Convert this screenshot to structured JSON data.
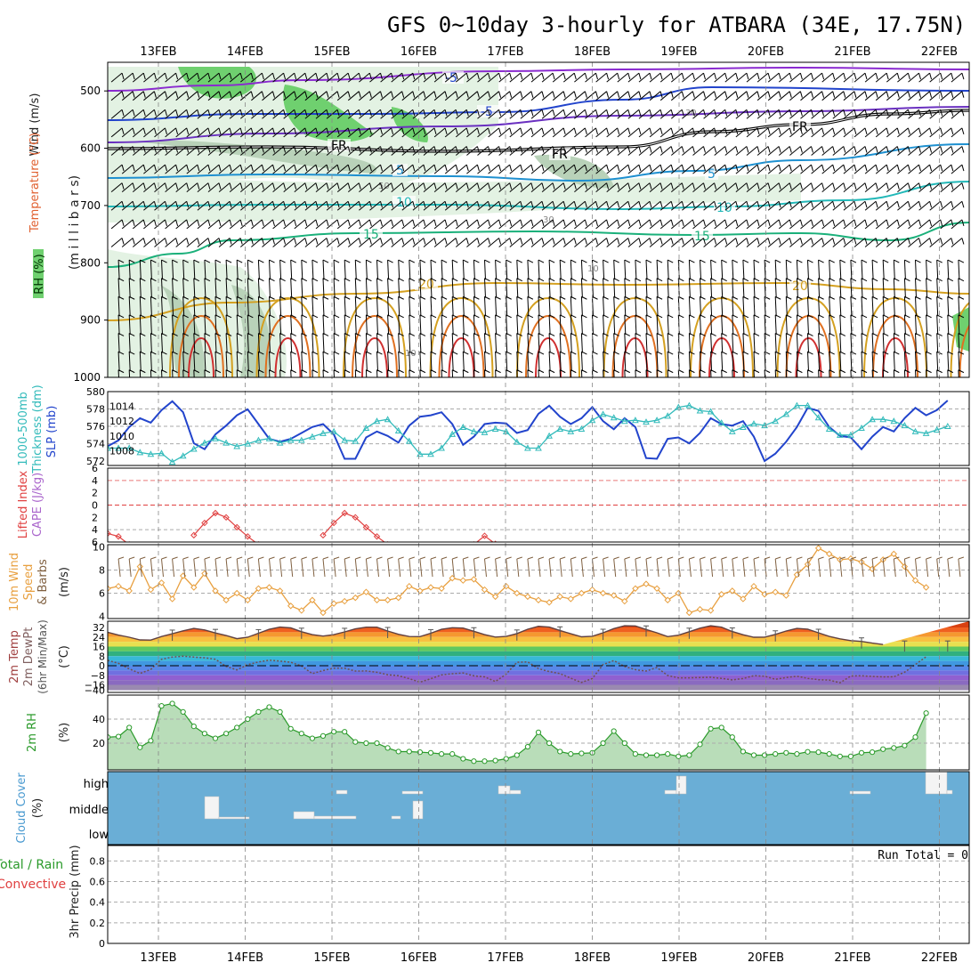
{
  "title": "GFS 0~10day 3-hourly for ATBARA (34E, 17.75N)",
  "date_labels": [
    "13FEB",
    "14FEB",
    "15FEB",
    "16FEB",
    "17FEB",
    "18FEB",
    "19FEB",
    "20FEB",
    "21FEB",
    "22FEB"
  ],
  "colors": {
    "rh_light": "#e3f2e3",
    "rh_mid": "#b9d2b9",
    "rh_green": "#6fd06f",
    "cloud_blue": "#6aaed6",
    "grid": "#aaaaaa",
    "cyan": "#33bbbb",
    "slp_blue": "#2244cc",
    "li_red": "#e04040",
    "wind_orange": "#e8a040",
    "rh_line": "#2a9a2a"
  },
  "chart_data": [
    {
      "type": "contour",
      "name": "upper-air",
      "legend": {
        "wind": "Wind (m/s)",
        "temperature": "Temperature (°C)",
        "rh": "RH (%)"
      },
      "ylabel": "(m i l l i b a r s)",
      "y_ticks": [
        500,
        600,
        700,
        800,
        900,
        1000
      ],
      "ylim": [
        450,
        1000
      ],
      "temperature_contours": [
        {
          "label": "-5",
          "level_mb": 545,
          "color": "#2244cc"
        },
        {
          "label": "FR",
          "level_mb": 600,
          "color": "#000000"
        },
        {
          "label": "5",
          "level_mb": 660,
          "color": "#1e90d0"
        },
        {
          "label": "10",
          "level_mb": 700,
          "color": "#22b8b8"
        },
        {
          "label": "15",
          "level_mb": 760,
          "color": "#1ab07a"
        },
        {
          "label": "20",
          "level_mb": 830,
          "color": "#d4a020"
        }
      ],
      "rh_labels": [
        "30",
        "50",
        "30",
        "10",
        "10"
      ]
    },
    {
      "type": "line",
      "name": "thickness-slp",
      "ylabel_left": "1000-500mb Thickness (dm)",
      "ylabel_right": "SLP (mb)",
      "y_ticks_thickness": [
        572,
        574,
        576,
        578,
        580
      ],
      "y_ticks_slp": [
        1008,
        1010,
        1012,
        1014
      ],
      "series": [
        {
          "name": "SLP",
          "values": [
            1008.6,
            1009.4,
            1011.2,
            1012.4,
            1011.8,
            1013.5,
            1014.7,
            1013.2,
            1009.0,
            1008.2,
            1010.2,
            1011.4,
            1012.8,
            1013.6,
            1011.6,
            1009.6,
            1009.2,
            1009.6,
            1010.4,
            1011.2,
            1011.6,
            1010.2,
            1006.9,
            1006.9,
            1009.8,
            1010.6,
            1010.0,
            1009.1,
            1011.4,
            1012.6,
            1012.8,
            1013.2,
            1011.6,
            1008.8,
            1009.9,
            1011.6,
            1011.8,
            1011.7,
            1010.4,
            1010.8,
            1013.0,
            1014.1,
            1012.6,
            1011.6,
            1012.4,
            1013.9,
            1012.0,
            1010.9,
            1012.4,
            1011.2,
            1007.0,
            1006.9,
            1009.6,
            1009.8,
            1009.0,
            1010.4,
            1012.4,
            1011.6,
            1011.4,
            1012.0,
            1009.9,
            1006.6,
            1007.6,
            1009.2,
            1011.2,
            1013.8,
            1013.4,
            1011.2,
            1010.0,
            1009.8,
            1008.2,
            1009.9,
            1011.2,
            1010.6,
            1012.4,
            1013.8,
            1012.8,
            1013.5,
            1014.8
          ]
        },
        {
          "name": "Thickness",
          "values": [
            573.5,
            573.5,
            573.5,
            573.0,
            572.8,
            572.9,
            571.9,
            572.6,
            573.4,
            574.1,
            574.6,
            574.1,
            573.7,
            574.0,
            574.4,
            574.6,
            574.1,
            574.4,
            574.4,
            574.8,
            575.2,
            575.4,
            574.4,
            574.3,
            575.8,
            576.6,
            576.8,
            575.5,
            574.3,
            572.8,
            572.8,
            573.5,
            575.1,
            575.9,
            575.4,
            575.3,
            575.7,
            575.4,
            574.2,
            573.5,
            573.5,
            574.9,
            575.7,
            575.4,
            575.7,
            576.7,
            577.4,
            577.0,
            576.6,
            576.7,
            576.5,
            576.7,
            577.2,
            578.2,
            578.4,
            577.8,
            577.7,
            576.4,
            575.4,
            575.9,
            576.3,
            576.1,
            576.6,
            577.4,
            578.4,
            578.4,
            577.0,
            575.7,
            575.0,
            575.0,
            575.8,
            576.8,
            576.8,
            576.6,
            576.1,
            575.4,
            575.2,
            575.6,
            576.0
          ]
        }
      ]
    },
    {
      "type": "line",
      "name": "lifted-index-cape",
      "ylabel_left": "Lifted Index",
      "ylabel_right": "CAPE (J/kg)",
      "y_ticks": [
        "6",
        "4",
        "2",
        "0",
        "2",
        "4",
        "6"
      ],
      "series": [
        {
          "name": "Lifted Index",
          "values": [
            4.6,
            5.1,
            6.4,
            null,
            null,
            null,
            null,
            null,
            4.9,
            2.9,
            1.3,
            2.0,
            3.6,
            5.1,
            6.4,
            null,
            null,
            null,
            null,
            null,
            4.9,
            2.9,
            1.3,
            2.0,
            3.6,
            5.1,
            6.4,
            null,
            null,
            null,
            null,
            null,
            null,
            null,
            6.4,
            5.0,
            6.3
          ]
        }
      ]
    },
    {
      "type": "line",
      "name": "wind-10m",
      "ylabel": "10m Wind Speed (m/s) & Barbs",
      "y_ticks": [
        4,
        6,
        8,
        10
      ],
      "series": [
        {
          "name": "Speed",
          "values": [
            6.4,
            6.6,
            6.2,
            8.3,
            6.3,
            6.9,
            5.5,
            7.5,
            6.5,
            7.7,
            6.2,
            5.4,
            6.0,
            5.4,
            6.4,
            6.5,
            6.2,
            4.9,
            4.5,
            5.4,
            4.3,
            5.1,
            5.3,
            5.6,
            6.1,
            5.4,
            5.4,
            5.6,
            6.6,
            6.2,
            6.5,
            6.4,
            7.3,
            7.1,
            7.2,
            6.3,
            5.7,
            6.6,
            6.0,
            5.7,
            5.4,
            5.2,
            5.7,
            5.5,
            6.0,
            6.3,
            6.0,
            5.8,
            5.3,
            6.4,
            6.8,
            6.4,
            5.4,
            6.0,
            4.3,
            4.6,
            4.5,
            5.9,
            6.2,
            5.5,
            6.6,
            5.9,
            6.1,
            5.8,
            7.6,
            8.5,
            9.9,
            9.4,
            8.9,
            9.0,
            8.7,
            8.1,
            8.9,
            9.4,
            8.3,
            7.1,
            6.5
          ]
        }
      ]
    },
    {
      "type": "area",
      "name": "temperature-2m",
      "ylabel": "2m Temp 2m DewPt (6hr Min/Max) (°C)",
      "y_ticks": [
        32,
        24,
        16,
        8,
        0,
        -8,
        -16,
        -40
      ],
      "y_tick_labels": [
        "32",
        "24",
        "16",
        "8",
        "0",
        "−8",
        "−16",
        "−40"
      ],
      "series": [
        {
          "name": "2m Temp",
          "values": [
            28.0,
            25.6,
            23.8,
            21.6,
            21.4,
            24.4,
            26.8,
            29.2,
            31.2,
            29.9,
            27.4,
            25.2,
            22.6,
            23.8,
            27.2,
            30.4,
            32.3,
            31.6,
            28.4,
            26.0,
            24.8,
            26.0,
            28.3,
            30.8,
            32.2,
            32.2,
            29.0,
            26.3,
            24.4,
            24.3,
            27.2,
            30.4,
            31.8,
            31.5,
            28.8,
            26.0,
            24.0,
            24.5,
            26.9,
            30.5,
            33.0,
            32.3,
            29.5,
            26.7,
            24.2,
            24.6,
            27.5,
            31.0,
            33.4,
            33.3,
            30.3,
            27.5,
            24.3,
            25.5,
            28.4,
            31.4,
            33.4,
            32.2,
            28.6,
            25.9,
            23.8,
            23.9,
            26.2,
            29.0,
            31.2,
            30.6,
            27.5,
            24.5,
            22.5,
            21.0,
            20.3,
            18.9,
            17.7
          ]
        },
        {
          "name": "2m DewPt",
          "values": [
            4.5,
            2.0,
            -2.6,
            -6.5,
            -3.1,
            5.4,
            7.2,
            8.0,
            7.2,
            6.6,
            5.4,
            -0.6,
            -3.5,
            0.9,
            3.1,
            4.6,
            3.9,
            2.9,
            -0.2,
            -6.6,
            -4.0,
            -2.1,
            -2.1,
            -4.5,
            -4.4,
            -5.5,
            -7.5,
            -8.4,
            -10.8,
            -13.8,
            -10.9,
            -7.7,
            -6.7,
            -6.0,
            -8.5,
            -9.3,
            -13.2,
            -7.1,
            2.9,
            3.2,
            -2.4,
            -4.9,
            -6.6,
            -10.4,
            -14.0,
            -10.7,
            1.0,
            4.3,
            -0.7,
            -3.3,
            -4.5,
            -1.5,
            -8.2,
            -10.1,
            -10.1,
            -9.9,
            -9.7,
            -10.6,
            -11.8,
            -10.7,
            -8.3,
            -8.8,
            -11.3,
            -9.9,
            -8.8,
            -10.6,
            -11.7,
            -12.0,
            -14.3,
            -8.6,
            -8.4,
            -8.9,
            -9.4,
            -9.2,
            -5.4,
            1.0,
            7.5
          ]
        }
      ]
    },
    {
      "type": "area",
      "name": "rh-2m",
      "ylabel": "2m RH (%)",
      "y_ticks": [
        20,
        40
      ],
      "series": [
        {
          "name": "2m RH",
          "values": [
            25,
            25.5,
            33,
            16.5,
            22,
            51,
            53,
            46,
            34,
            28,
            24,
            28,
            33,
            40,
            46,
            50,
            46,
            32,
            28,
            24,
            26,
            29.5,
            29.5,
            21,
            20,
            20,
            16,
            13,
            13,
            12.5,
            12,
            11,
            11,
            7,
            5,
            5,
            5.5,
            7,
            10,
            17,
            29,
            20,
            13,
            11,
            11.5,
            12,
            20,
            30,
            20,
            11,
            10,
            10,
            11,
            9,
            10,
            19,
            32,
            33,
            25,
            13,
            10,
            10,
            11,
            12,
            11,
            12.8,
            12.5,
            11,
            9,
            9,
            12,
            12.5,
            15,
            16,
            18,
            25,
            45
          ]
        }
      ]
    },
    {
      "type": "bar",
      "name": "cloud-cover",
      "ylabel": "Cloud Cover (%)",
      "y_tick_labels": [
        "high",
        "middle",
        "low"
      ]
    },
    {
      "type": "bar",
      "name": "precipitation",
      "ylabel": "3hr Precip (mm)",
      "legend": [
        "Total / Rain",
        "Convective"
      ],
      "y_ticks": [
        0,
        0.2,
        0.4,
        0.6,
        0.8
      ],
      "y_tick_labels": [
        "0",
        "0.2",
        "0.4",
        "0.6",
        "0.8"
      ],
      "run_total": "Run Total = 0",
      "values": []
    }
  ]
}
